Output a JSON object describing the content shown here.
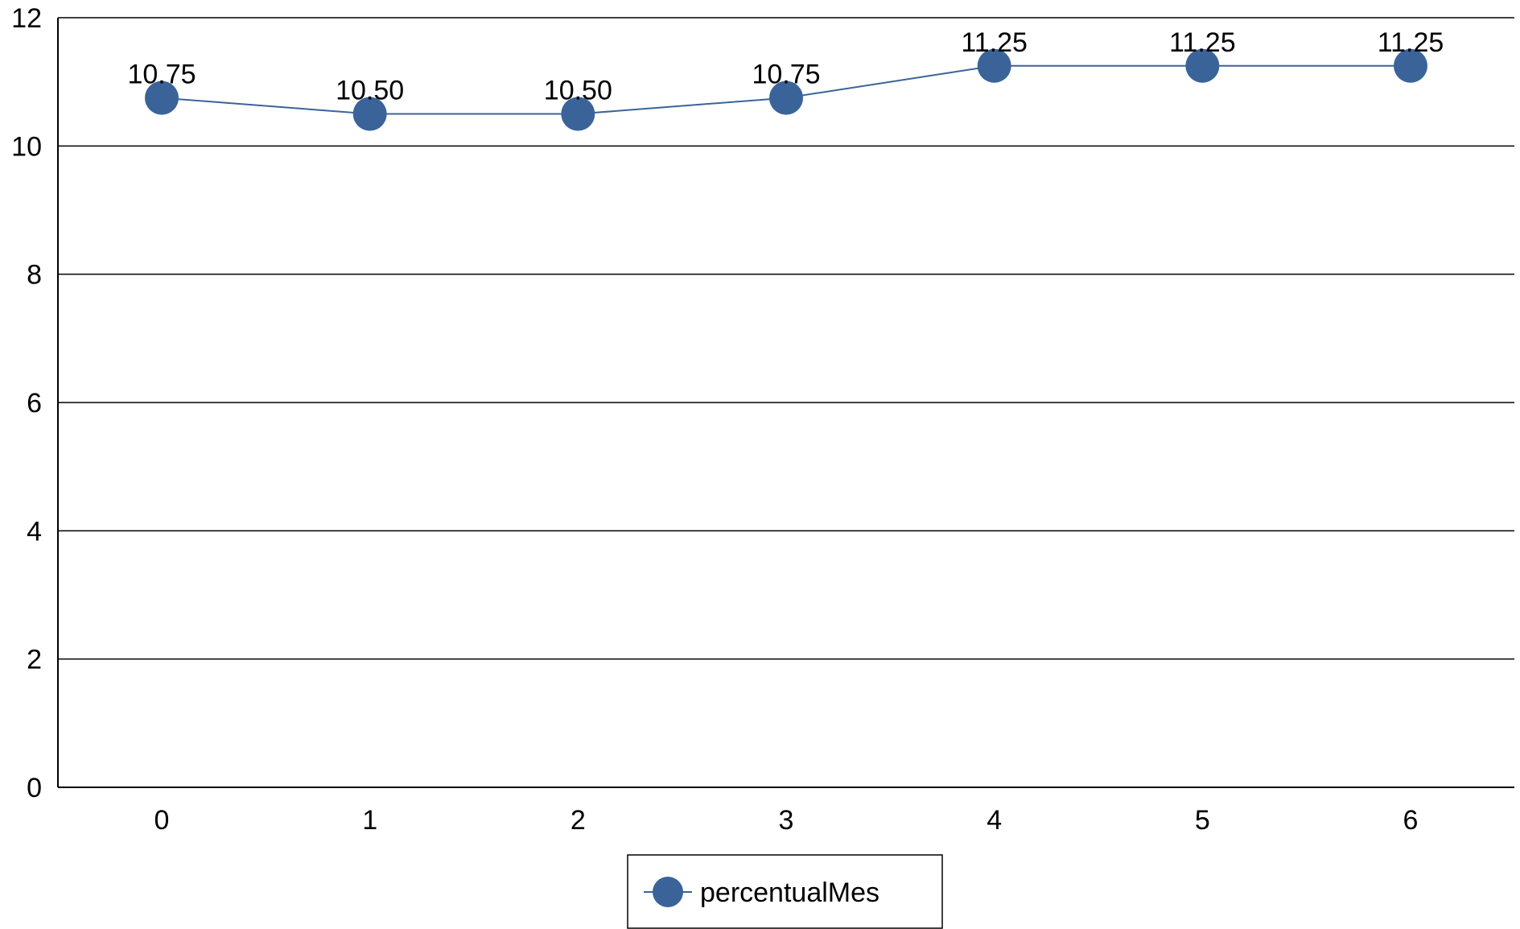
{
  "chart_data": {
    "type": "line",
    "x": [
      0,
      1,
      2,
      3,
      4,
      5,
      6
    ],
    "x_tick_labels": [
      "0",
      "1",
      "2",
      "3",
      "4",
      "5",
      "6"
    ],
    "series": [
      {
        "name": "percentualMes",
        "values": [
          10.75,
          10.5,
          10.5,
          10.75,
          11.25,
          11.25,
          11.25
        ],
        "data_labels": [
          "10.75",
          "10.50",
          "10.50",
          "10.75",
          "11.25",
          "11.25",
          "11.25"
        ],
        "color": "#3a6499",
        "marker": "circle"
      }
    ],
    "ylim": [
      0,
      12
    ],
    "y_ticks": [
      0,
      2,
      4,
      6,
      8,
      10,
      12
    ],
    "y_tick_labels": [
      "0",
      "2",
      "4",
      "6",
      "8",
      "10",
      "12"
    ],
    "xlabel": "",
    "ylabel": "",
    "title": "",
    "grid": "horizontal",
    "legend": "bottom-center",
    "colors": {
      "series": "#3a6499",
      "grid": "#000000",
      "axis": "#000000",
      "background": "#ffffff"
    }
  }
}
